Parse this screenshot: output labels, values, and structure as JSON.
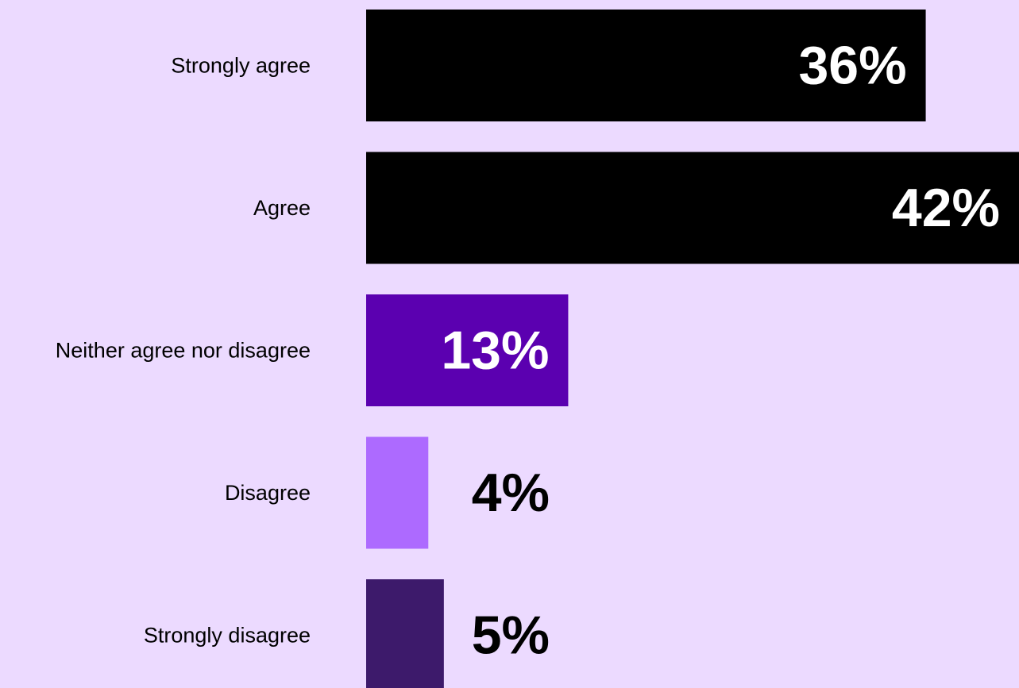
{
  "chart_data": {
    "type": "bar",
    "orientation": "horizontal",
    "categories": [
      "Strongly agree",
      "Agree",
      "Neither agree nor disagree",
      "Disagree",
      "Strongly disagree"
    ],
    "values": [
      36,
      42,
      13,
      4,
      5
    ],
    "value_labels": [
      "36%",
      "42%",
      "13%",
      "4%",
      "5%"
    ],
    "bar_colors": [
      "#000000",
      "#000000",
      "#5b00b0",
      "#ad6aff",
      "#3d1a6b"
    ],
    "value_label_colors": [
      "#ffffff",
      "#ffffff",
      "#ffffff",
      "#000000",
      "#000000"
    ],
    "title": "",
    "xlabel": "",
    "ylabel": "",
    "xlim": [
      0,
      42
    ],
    "grid": false,
    "legend": "none"
  },
  "colors": {
    "background": "#ecdaff"
  }
}
